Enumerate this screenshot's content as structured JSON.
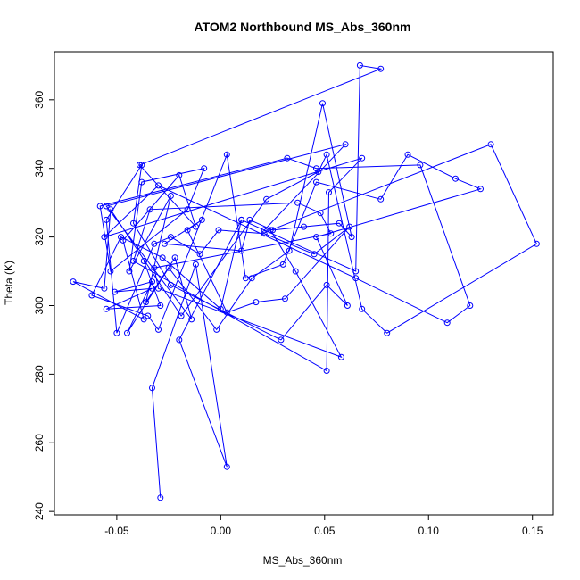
{
  "chart_data": {
    "type": "scatter",
    "title": "ATOM2 Northbound MS_Abs_360nm",
    "xlabel": "MS_Abs_360nm",
    "ylabel": "Theta (K)",
    "xlim": [
      -0.08,
      0.16
    ],
    "ylim": [
      239,
      374
    ],
    "x_ticks": [
      -0.05,
      0.0,
      0.05,
      0.1,
      0.15
    ],
    "x_tick_labels": [
      "-0.05",
      "0.00",
      "0.05",
      "0.10",
      "0.15"
    ],
    "y_ticks": [
      240,
      260,
      280,
      300,
      320,
      340,
      360
    ],
    "y_tick_labels": [
      "240",
      "260",
      "280",
      "300",
      "320",
      "340",
      "360"
    ],
    "grid": false,
    "series_color": "#0000ff",
    "x": [
      -0.029,
      -0.033,
      -0.012,
      0.003,
      -0.02,
      0.01,
      0.065,
      0.067,
      0.077,
      -0.039,
      -0.012,
      -0.02,
      -0.047,
      -0.037,
      -0.071,
      -0.056,
      -0.053,
      -0.019,
      0.022,
      0.047,
      0.051,
      0.068,
      0.08,
      0.152,
      0.13,
      0.024,
      0.036,
      0.058,
      -0.03,
      -0.032,
      0.053,
      0.048,
      0.037,
      -0.034,
      -0.042,
      0.051,
      0.052,
      0.068,
      -0.056,
      -0.03,
      0.065,
      0.109,
      0.12,
      0.096,
      0.046,
      0.032,
      -0.058,
      -0.053,
      -0.016,
      -0.008,
      -0.038,
      -0.044,
      -0.024,
      -0.036,
      -0.022,
      -0.014,
      -0.055,
      0.06,
      0.021,
      0.01,
      0.0,
      -0.028,
      -0.048,
      -0.062,
      -0.035,
      -0.03,
      0.003,
      0.012,
      0.03,
      0.046,
      0.077,
      0.09,
      0.113,
      0.125,
      0.046,
      0.061,
      0.051,
      0.029,
      -0.024,
      -0.042,
      -0.038,
      -0.055,
      -0.05,
      -0.032,
      -0.024,
      -0.01,
      -0.001,
      0.021,
      0.045,
      0.062,
      0.031,
      0.017,
      0.003,
      -0.016,
      -0.009,
      -0.027,
      0.01,
      0.014,
      0.025,
      0.04,
      0.057,
      0.063,
      0.049,
      0.033,
      0.015,
      -0.002,
      -0.025,
      -0.045,
      -0.033,
      -0.051,
      -0.033,
      -0.055,
      -0.029,
      -0.037
    ],
    "y": [
      244,
      276,
      312,
      253,
      290,
      325,
      310,
      370,
      369,
      341,
      323,
      338,
      319,
      296,
      307,
      305,
      328,
      297,
      331,
      339,
      344,
      299,
      292,
      318,
      347,
      322,
      310,
      285,
      305,
      311,
      321,
      327,
      330,
      328,
      313,
      281,
      333,
      343,
      320,
      335,
      308,
      295,
      300,
      341,
      340,
      343,
      329,
      310,
      328,
      340,
      336,
      310,
      332,
      301,
      314,
      296,
      329,
      347,
      322,
      325,
      299,
      314,
      320,
      303,
      297,
      293,
      344,
      308,
      312,
      336,
      331,
      344,
      337,
      334,
      320,
      300,
      306,
      290,
      306,
      324,
      341,
      325,
      292,
      318,
      320,
      315,
      322,
      321,
      315,
      323,
      302,
      301,
      298,
      322,
      325,
      318,
      316,
      325,
      322,
      323,
      324,
      320,
      359,
      316,
      308,
      293,
      311,
      292,
      307,
      304,
      305,
      299,
      300,
      313
    ]
  }
}
